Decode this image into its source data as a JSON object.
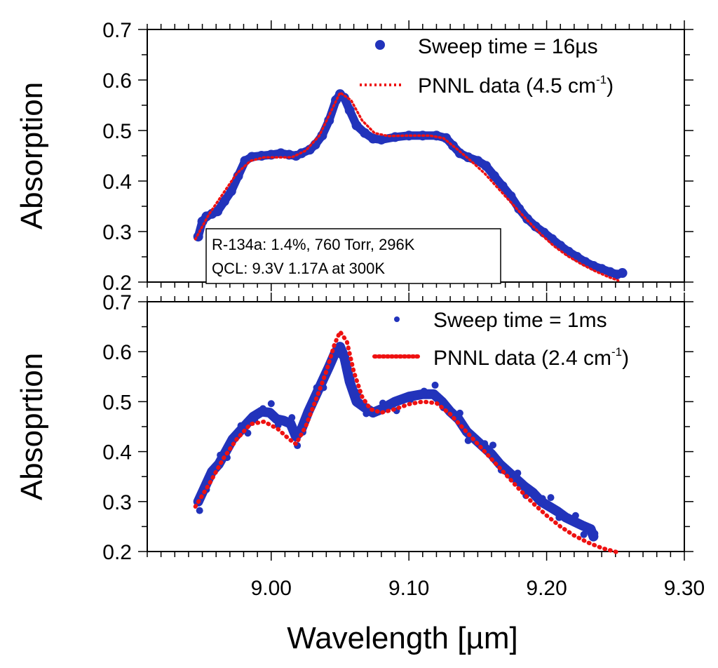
{
  "chart_data": [
    {
      "type": "scatter",
      "panel": "top",
      "ylabel": "Absorption",
      "xlim": [
        8.91,
        9.3
      ],
      "ylim": [
        0.2,
        0.7
      ],
      "yticks": [
        "0.7",
        "0.6",
        "0.5",
        "0.4",
        "0.3",
        "0.2"
      ],
      "series": [
        {
          "name": "Sweep time = 16µs",
          "style": "markers",
          "color": "#2233bb",
          "points": [
            [
              8.947,
              0.29
            ],
            [
              8.95,
              0.32
            ],
            [
              8.953,
              0.33
            ],
            [
              8.957,
              0.335
            ],
            [
              8.961,
              0.34
            ],
            [
              8.966,
              0.36
            ],
            [
              8.971,
              0.38
            ],
            [
              8.976,
              0.41
            ],
            [
              8.981,
              0.44
            ],
            [
              8.986,
              0.448
            ],
            [
              8.993,
              0.45
            ],
            [
              9.0,
              0.452
            ],
            [
              9.007,
              0.455
            ],
            [
              9.013,
              0.452
            ],
            [
              9.018,
              0.45
            ],
            [
              9.022,
              0.455
            ],
            [
              9.028,
              0.462
            ],
            [
              9.032,
              0.472
            ],
            [
              9.037,
              0.49
            ],
            [
              9.042,
              0.52
            ],
            [
              9.047,
              0.56
            ],
            [
              9.05,
              0.572
            ],
            [
              9.053,
              0.565
            ],
            [
              9.057,
              0.54
            ],
            [
              9.062,
              0.51
            ],
            [
              9.068,
              0.495
            ],
            [
              9.074,
              0.484
            ],
            [
              9.08,
              0.482
            ],
            [
              9.09,
              0.487
            ],
            [
              9.1,
              0.49
            ],
            [
              9.11,
              0.49
            ],
            [
              9.12,
              0.49
            ],
            [
              9.127,
              0.485
            ],
            [
              9.132,
              0.47
            ],
            [
              9.137,
              0.455
            ],
            [
              9.143,
              0.447
            ],
            [
              9.15,
              0.44
            ],
            [
              9.156,
              0.43
            ],
            [
              9.162,
              0.41
            ],
            [
              9.168,
              0.39
            ],
            [
              9.174,
              0.37
            ],
            [
              9.18,
              0.345
            ],
            [
              9.186,
              0.325
            ],
            [
              9.192,
              0.31
            ],
            [
              9.198,
              0.298
            ],
            [
              9.204,
              0.285
            ],
            [
              9.21,
              0.272
            ],
            [
              9.216,
              0.26
            ],
            [
              9.222,
              0.25
            ],
            [
              9.228,
              0.24
            ],
            [
              9.234,
              0.232
            ],
            [
              9.24,
              0.226
            ],
            [
              9.246,
              0.22
            ],
            [
              9.251,
              0.215
            ],
            [
              9.255,
              0.218
            ]
          ]
        },
        {
          "name": "PNNL data (4.5 cm-1)",
          "style": "dotted",
          "color": "#ee1111",
          "points": [
            [
              8.945,
              0.285
            ],
            [
              8.955,
              0.335
            ],
            [
              8.965,
              0.375
            ],
            [
              8.975,
              0.415
            ],
            [
              8.985,
              0.44
            ],
            [
              8.995,
              0.447
            ],
            [
              9.005,
              0.447
            ],
            [
              9.015,
              0.447
            ],
            [
              9.025,
              0.46
            ],
            [
              9.035,
              0.49
            ],
            [
              9.042,
              0.53
            ],
            [
              9.05,
              0.575
            ],
            [
              9.058,
              0.56
            ],
            [
              9.066,
              0.52
            ],
            [
              9.075,
              0.495
            ],
            [
              9.085,
              0.489
            ],
            [
              9.1,
              0.49
            ],
            [
              9.115,
              0.49
            ],
            [
              9.125,
              0.485
            ],
            [
              9.135,
              0.463
            ],
            [
              9.145,
              0.44
            ],
            [
              9.155,
              0.415
            ],
            [
              9.165,
              0.385
            ],
            [
              9.175,
              0.355
            ],
            [
              9.185,
              0.325
            ],
            [
              9.195,
              0.297
            ],
            [
              9.205,
              0.272
            ],
            [
              9.215,
              0.252
            ],
            [
              9.225,
              0.236
            ],
            [
              9.235,
              0.222
            ],
            [
              9.245,
              0.21
            ],
            [
              9.252,
              0.203
            ]
          ]
        }
      ]
    },
    {
      "type": "scatter",
      "panel": "bottom",
      "ylabel": "Absoprtion",
      "xlabel": "Wavelength [µm]",
      "xlim": [
        8.91,
        9.3
      ],
      "ylim": [
        0.2,
        0.7
      ],
      "xticks": [
        "9.00",
        "9.10",
        "9.20",
        "9.30"
      ],
      "yticks": [
        "0.7",
        "0.6",
        "0.5",
        "0.4",
        "0.3",
        "0.2"
      ],
      "series": [
        {
          "name": "Sweep time = 1ms",
          "style": "markers",
          "color": "#2233bb",
          "points": [
            [
              8.947,
              0.3
            ],
            [
              8.952,
              0.33
            ],
            [
              8.957,
              0.36
            ],
            [
              8.962,
              0.375
            ],
            [
              8.967,
              0.4
            ],
            [
              8.972,
              0.425
            ],
            [
              8.977,
              0.44
            ],
            [
              8.982,
              0.455
            ],
            [
              8.987,
              0.47
            ],
            [
              8.993,
              0.48
            ],
            [
              8.999,
              0.478
            ],
            [
              9.004,
              0.465
            ],
            [
              9.009,
              0.462
            ],
            [
              9.014,
              0.456
            ],
            [
              9.018,
              0.43
            ],
            [
              9.022,
              0.445
            ],
            [
              9.027,
              0.48
            ],
            [
              9.032,
              0.51
            ],
            [
              9.037,
              0.54
            ],
            [
              9.042,
              0.57
            ],
            [
              9.046,
              0.595
            ],
            [
              9.05,
              0.61
            ],
            [
              9.053,
              0.59
            ],
            [
              9.057,
              0.54
            ],
            [
              9.062,
              0.5
            ],
            [
              9.068,
              0.488
            ],
            [
              9.074,
              0.478
            ],
            [
              9.08,
              0.485
            ],
            [
              9.09,
              0.5
            ],
            [
              9.1,
              0.51
            ],
            [
              9.11,
              0.515
            ],
            [
              9.118,
              0.515
            ],
            [
              9.124,
              0.5
            ],
            [
              9.13,
              0.48
            ],
            [
              9.136,
              0.465
            ],
            [
              9.142,
              0.44
            ],
            [
              9.148,
              0.425
            ],
            [
              9.154,
              0.41
            ],
            [
              9.16,
              0.395
            ],
            [
              9.166,
              0.375
            ],
            [
              9.172,
              0.36
            ],
            [
              9.178,
              0.345
            ],
            [
              9.184,
              0.33
            ],
            [
              9.19,
              0.318
            ],
            [
              9.196,
              0.3
            ],
            [
              9.202,
              0.29
            ],
            [
              9.208,
              0.28
            ],
            [
              9.214,
              0.268
            ],
            [
              9.22,
              0.26
            ],
            [
              9.226,
              0.252
            ],
            [
              9.232,
              0.245
            ],
            [
              9.234,
              0.23
            ]
          ]
        },
        {
          "name": "PNNL data (2.4 cm-1)",
          "style": "dotted",
          "color": "#ee1111",
          "points": [
            [
              8.945,
              0.29
            ],
            [
              8.955,
              0.335
            ],
            [
              8.965,
              0.385
            ],
            [
              8.975,
              0.425
            ],
            [
              8.985,
              0.455
            ],
            [
              8.995,
              0.46
            ],
            [
              9.005,
              0.445
            ],
            [
              9.013,
              0.425
            ],
            [
              9.018,
              0.415
            ],
            [
              9.025,
              0.45
            ],
            [
              9.032,
              0.5
            ],
            [
              9.04,
              0.56
            ],
            [
              9.046,
              0.615
            ],
            [
              9.05,
              0.64
            ],
            [
              9.055,
              0.62
            ],
            [
              9.06,
              0.56
            ],
            [
              9.066,
              0.51
            ],
            [
              9.072,
              0.485
            ],
            [
              9.08,
              0.478
            ],
            [
              9.09,
              0.485
            ],
            [
              9.1,
              0.495
            ],
            [
              9.11,
              0.5
            ],
            [
              9.12,
              0.497
            ],
            [
              9.13,
              0.475
            ],
            [
              9.14,
              0.445
            ],
            [
              9.15,
              0.415
            ],
            [
              9.16,
              0.385
            ],
            [
              9.17,
              0.355
            ],
            [
              9.18,
              0.325
            ],
            [
              9.19,
              0.297
            ],
            [
              9.2,
              0.272
            ],
            [
              9.21,
              0.25
            ],
            [
              9.22,
              0.232
            ],
            [
              9.23,
              0.218
            ],
            [
              9.24,
              0.207
            ],
            [
              9.252,
              0.198
            ]
          ]
        }
      ]
    }
  ],
  "annotation": {
    "line1": "R-134a: 1.4%, 760 Torr, 296K",
    "line2": "QCL: 9.3V 1.17A  at 300K"
  },
  "legend": {
    "top_marker_label": "Sweep time = 16µs",
    "top_line_label": "PNNL data (4.5 cm",
    "top_line_sup": "-1",
    "top_line_close": ")",
    "bottom_marker_label": "Sweep time = 1ms",
    "bottom_line_label": "PNNL data (2.4 cm",
    "bottom_line_sup": "-1",
    "bottom_line_close": ")"
  },
  "colors": {
    "marker": "#2233bb",
    "pnnl": "#ee1111"
  }
}
